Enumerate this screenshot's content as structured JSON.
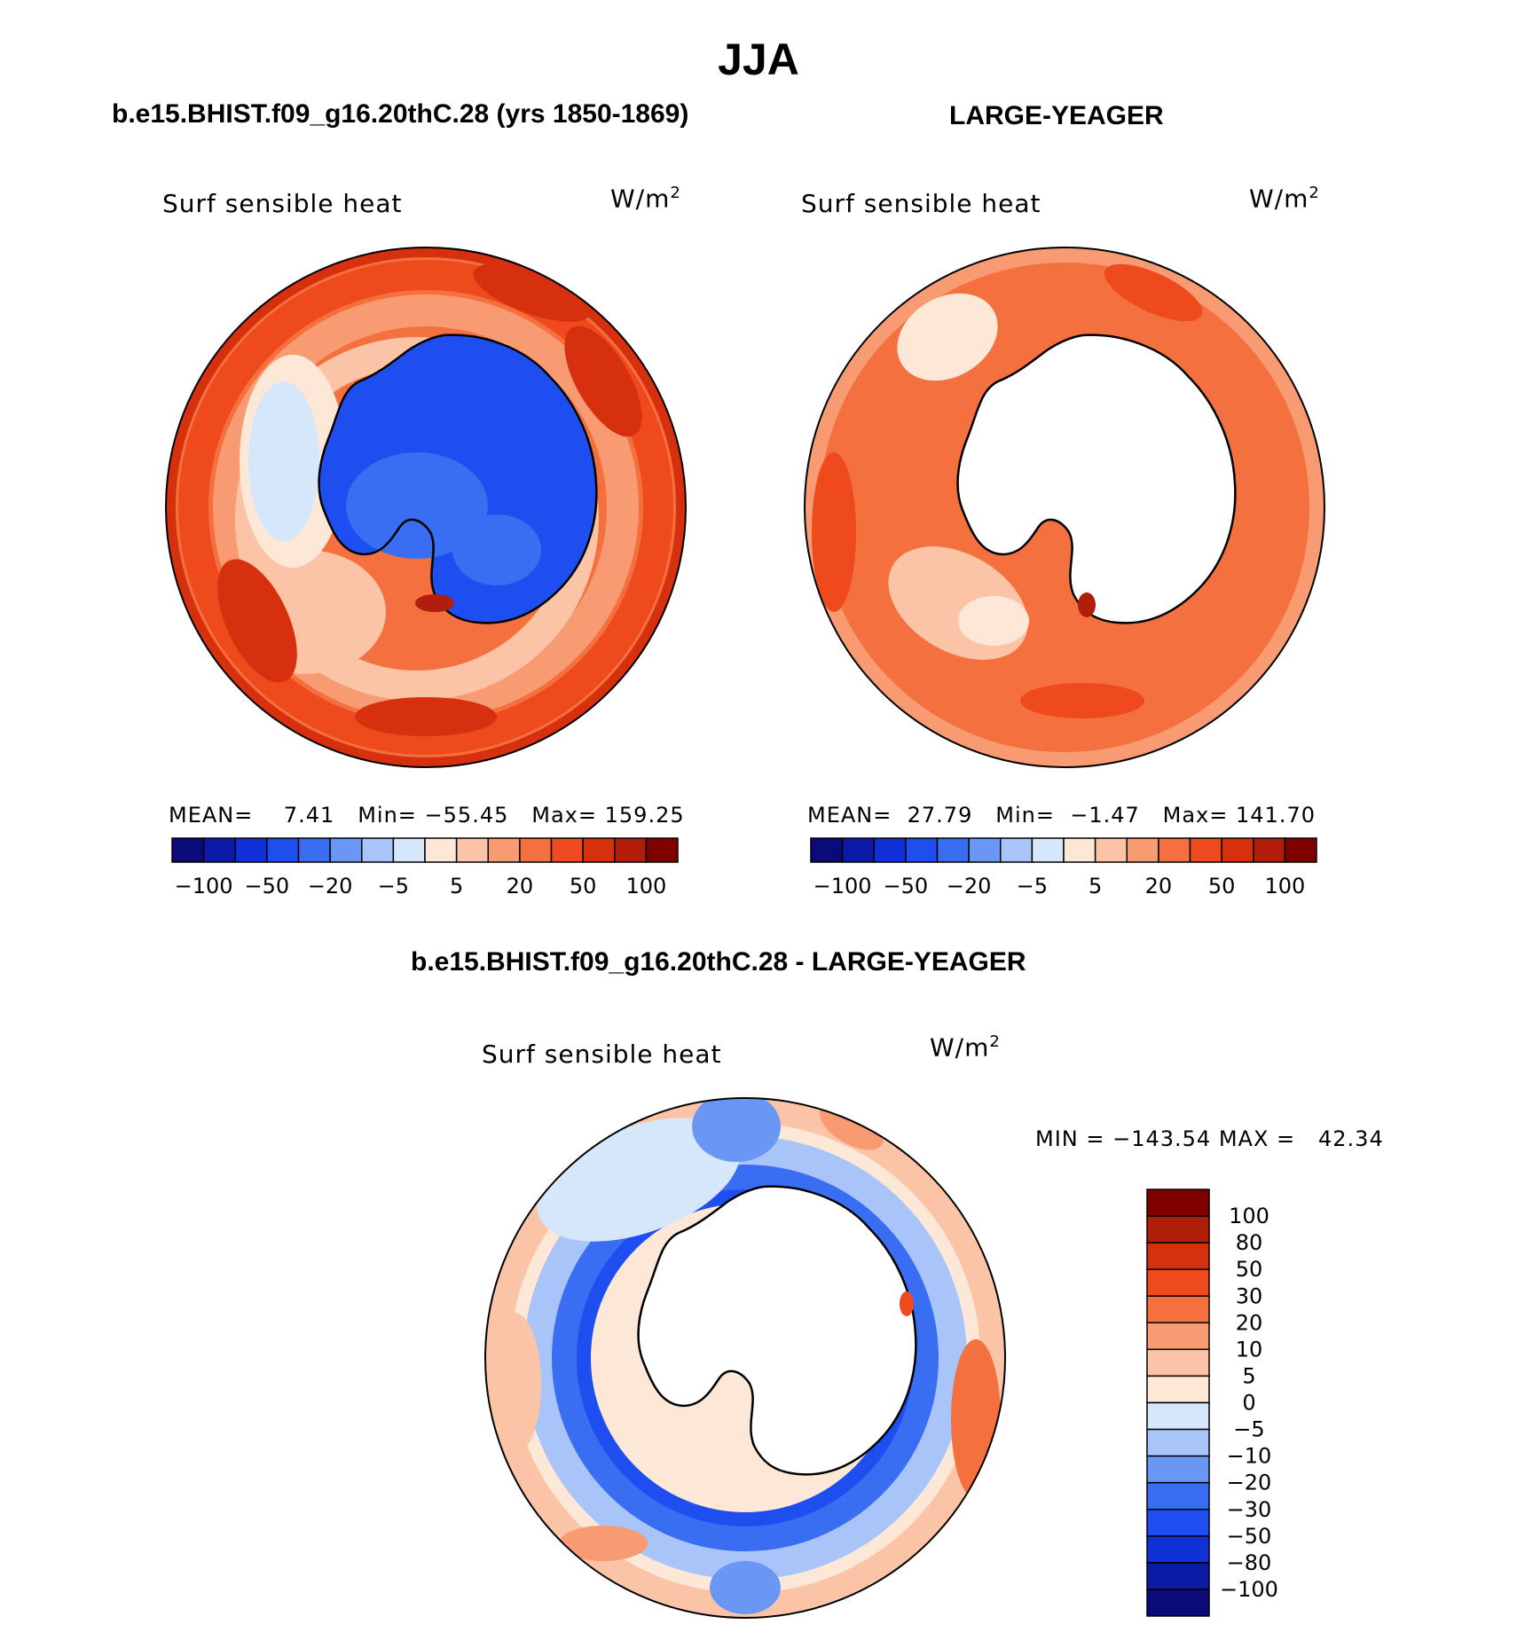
{
  "figure": {
    "season": "JJA"
  },
  "panels": [
    {
      "title": "b.e15.BHIST.f09_g16.20thC.28 (yrs 1850-1869)",
      "variable": "Surf sensible heat",
      "units": "W/m",
      "units_exp": "2",
      "stats": {
        "mean_label": "MEAN=",
        "mean": "7.41",
        "min_label": "Min=",
        "min": "−55.45",
        "max_label": "Max=",
        "max": "159.25"
      },
      "colorbar_ticks": [
        "−100",
        "−50",
        "−20",
        "−5",
        "5",
        "20",
        "50",
        "100"
      ]
    },
    {
      "title": "LARGE-YEAGER",
      "variable": "Surf sensible heat",
      "units": "W/m",
      "units_exp": "2",
      "stats": {
        "mean_label": "MEAN=",
        "mean": "27.79",
        "min_label": "Min=",
        "min": "−1.47",
        "max_label": "Max=",
        "max": "141.70"
      },
      "colorbar_ticks": [
        "−100",
        "−50",
        "−20",
        "−5",
        "5",
        "20",
        "50",
        "100"
      ]
    },
    {
      "title": "b.e15.BHIST.f09_g16.20thC.28 - LARGE-YEAGER",
      "variable": "Surf sensible heat",
      "units": "W/m",
      "units_exp": "2",
      "minmax": "MIN = −143.54 MAX =   42.34",
      "colorbar_ticks": [
        "100",
        "80",
        "50",
        "30",
        "20",
        "10",
        "5",
        "0",
        "−5",
        "−10",
        "−20",
        "−30",
        "−50",
        "−80",
        "−100"
      ]
    }
  ],
  "colors": {
    "field_colorbar": [
      "#0a0a7a",
      "#0c1aa8",
      "#1030d8",
      "#1e4ef0",
      "#3a6ef2",
      "#6a96f4",
      "#a8c4f8",
      "#d6e6fb",
      "#fde8d8",
      "#fcc4a6",
      "#f89a72",
      "#f4703e",
      "#ee4a1e",
      "#d6300e",
      "#b01e0a",
      "#800000"
    ],
    "diff_colorbar": [
      "#800000",
      "#b01e0a",
      "#d6300e",
      "#ee4a1e",
      "#f4703e",
      "#f89a72",
      "#fcc4a6",
      "#fde8d8",
      "#d6e6fb",
      "#a8c4f8",
      "#6a96f4",
      "#3a6ef2",
      "#1e4ef0",
      "#1030d8",
      "#0c1aa8",
      "#0a0a7a"
    ],
    "land": "#ffffff",
    "coast": "#000000"
  }
}
